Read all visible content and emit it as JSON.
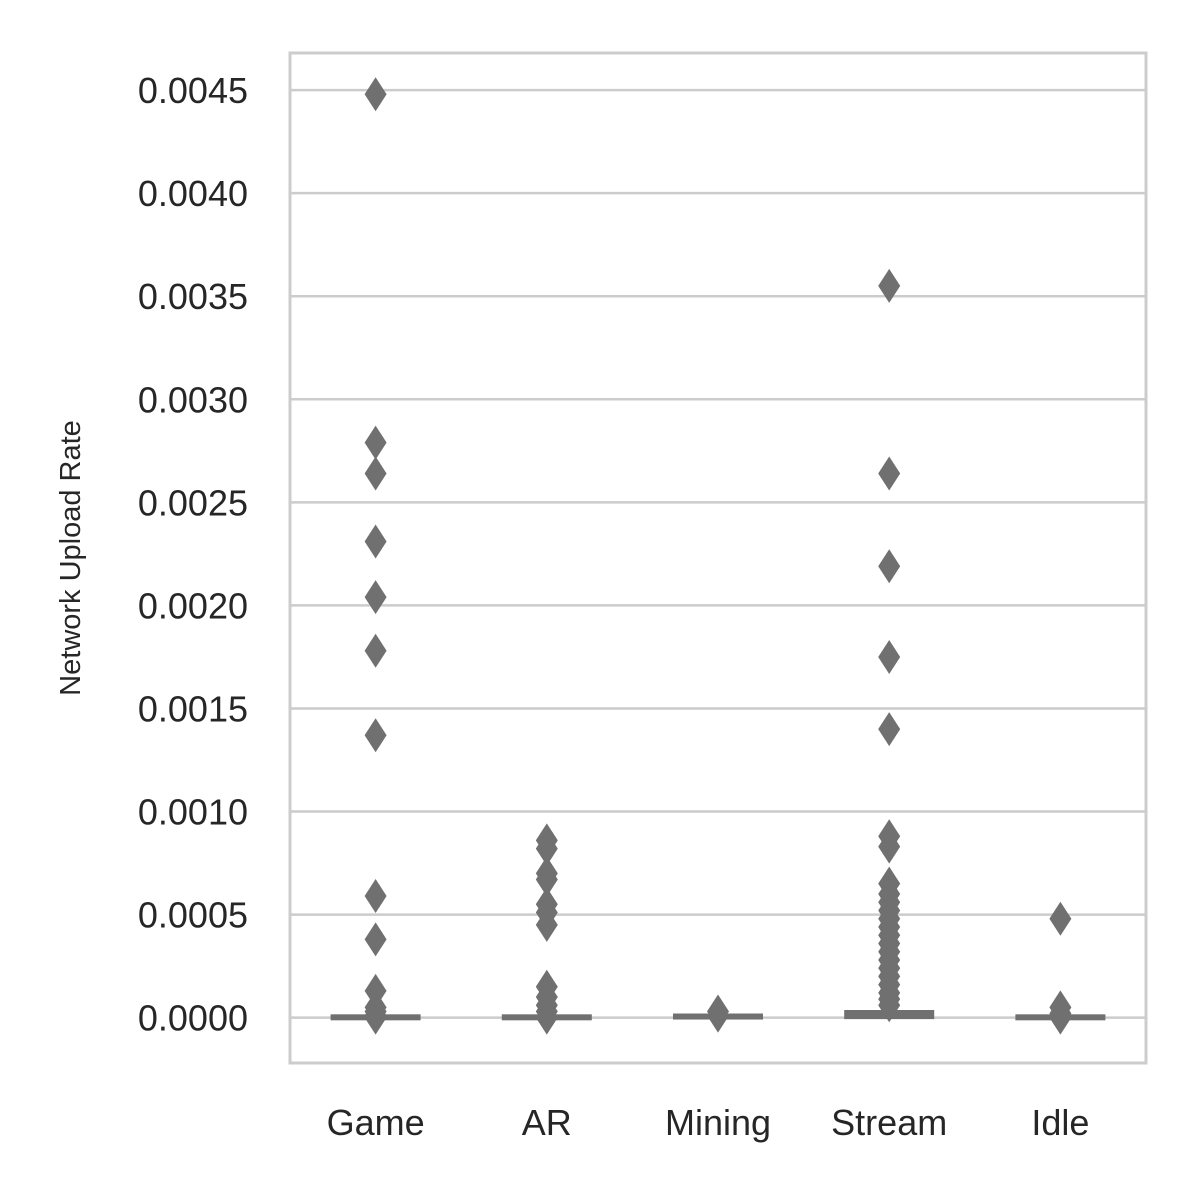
{
  "chart_data": {
    "type": "box",
    "ylabel": "Network Upload Rate",
    "xlabel": "",
    "title": "",
    "categories": [
      "Game",
      "AR",
      "Mining",
      "Stream",
      "Idle"
    ],
    "y_ticks": [
      "0.0000",
      "0.0005",
      "0.0010",
      "0.0015",
      "0.0020",
      "0.0025",
      "0.0030",
      "0.0035",
      "0.0040",
      "0.0045"
    ],
    "ylim": [
      -0.00022,
      0.00468
    ],
    "grid": "horizontal",
    "colors": {
      "mark": "#707070",
      "grid": "#cccccc",
      "frame": "#cccccc",
      "text": "#262626"
    },
    "boxes": [
      {
        "category": "Game",
        "q1": 0.0,
        "median": 2e-06,
        "q3": 4e-06,
        "whisker_low": 0.0,
        "whisker_high": 8e-06,
        "outliers": [
          0.00448,
          0.00279,
          0.00264,
          0.00231,
          0.00204,
          0.00178,
          0.00137,
          0.00059,
          0.00038,
          0.00013,
          5e-05,
          3e-05,
          1e-05,
          0.0
        ]
      },
      {
        "category": "AR",
        "q1": 0.0,
        "median": 2e-06,
        "q3": 4e-06,
        "whisker_low": 0.0,
        "whisker_high": 8e-06,
        "outliers": [
          0.00086,
          0.00082,
          0.0007,
          0.00067,
          0.00055,
          0.00051,
          0.00045,
          0.00015,
          0.0001,
          6e-05,
          3e-05,
          0.0
        ]
      },
      {
        "category": "Mining",
        "q1": 3e-06,
        "median": 5e-06,
        "q3": 8e-06,
        "whisker_low": 0.0,
        "whisker_high": 1.2e-05,
        "outliers": [
          3e-05,
          1e-05
        ]
      },
      {
        "category": "Stream",
        "q1": 5e-06,
        "median": 1.2e-05,
        "q3": 2.5e-05,
        "whisker_low": 0.0,
        "whisker_high": 4e-05,
        "outliers": [
          0.00355,
          0.00264,
          0.00219,
          0.00175,
          0.0014,
          0.00088,
          0.00083,
          0.00065,
          0.0006,
          0.00056,
          0.00052,
          0.00048,
          0.00044,
          0.0004,
          0.00036,
          0.00032,
          0.00028,
          0.00024,
          0.0002,
          0.00016,
          0.00012,
          9e-05,
          6e-05
        ]
      },
      {
        "category": "Idle",
        "q1": 0.0,
        "median": 2e-06,
        "q3": 4e-06,
        "whisker_low": 0.0,
        "whisker_high": 6e-06,
        "outliers": [
          0.00048,
          5e-05,
          2e-05,
          0.0
        ]
      }
    ]
  }
}
